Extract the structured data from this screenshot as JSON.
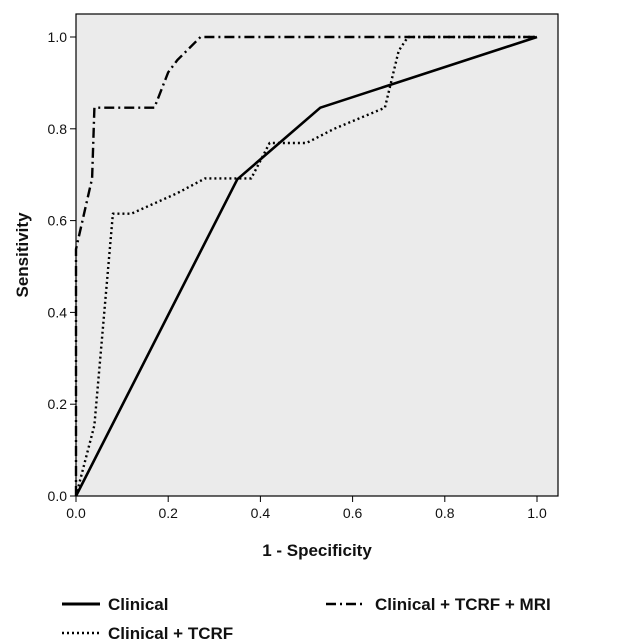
{
  "chart_data": {
    "type": "line",
    "xlabel": "1 - Specificity",
    "ylabel": "Sensitivity",
    "xlim": [
      0,
      1
    ],
    "ylim": [
      0,
      1
    ],
    "xticks": [
      "0.0",
      "0.2",
      "0.4",
      "0.6",
      "0.8",
      "1.0"
    ],
    "yticks": [
      "0.0",
      "0.2",
      "0.4",
      "0.6",
      "0.8",
      "1.0"
    ],
    "grid": false,
    "background": "#ebebeb",
    "legend_position": "bottom",
    "series": [
      {
        "name": "Clinical",
        "style": "solid",
        "color": "#000000",
        "points": [
          [
            0,
            0
          ],
          [
            0.35,
            0.69
          ],
          [
            0.53,
            0.846
          ],
          [
            1,
            1
          ]
        ]
      },
      {
        "name": "Clinical + TCRF",
        "style": "dotted",
        "color": "#000000",
        "points": [
          [
            0,
            0
          ],
          [
            0.04,
            0.154
          ],
          [
            0.08,
            0.615
          ],
          [
            0.12,
            0.615
          ],
          [
            0.22,
            0.66
          ],
          [
            0.28,
            0.692
          ],
          [
            0.38,
            0.692
          ],
          [
            0.42,
            0.769
          ],
          [
            0.5,
            0.769
          ],
          [
            0.56,
            0.8
          ],
          [
            0.67,
            0.846
          ],
          [
            0.7,
            0.97
          ],
          [
            0.72,
            1.0
          ],
          [
            1,
            1
          ]
        ]
      },
      {
        "name": "Clinical + TCRF + MRI",
        "style": "dashdot",
        "color": "#000000",
        "points": [
          [
            0,
            0
          ],
          [
            0,
            0.538
          ],
          [
            0.035,
            0.692
          ],
          [
            0.04,
            0.846
          ],
          [
            0.17,
            0.846
          ],
          [
            0.2,
            0.923
          ],
          [
            0.22,
            0.95
          ],
          [
            0.27,
            1.0
          ],
          [
            1,
            1
          ]
        ]
      }
    ]
  }
}
